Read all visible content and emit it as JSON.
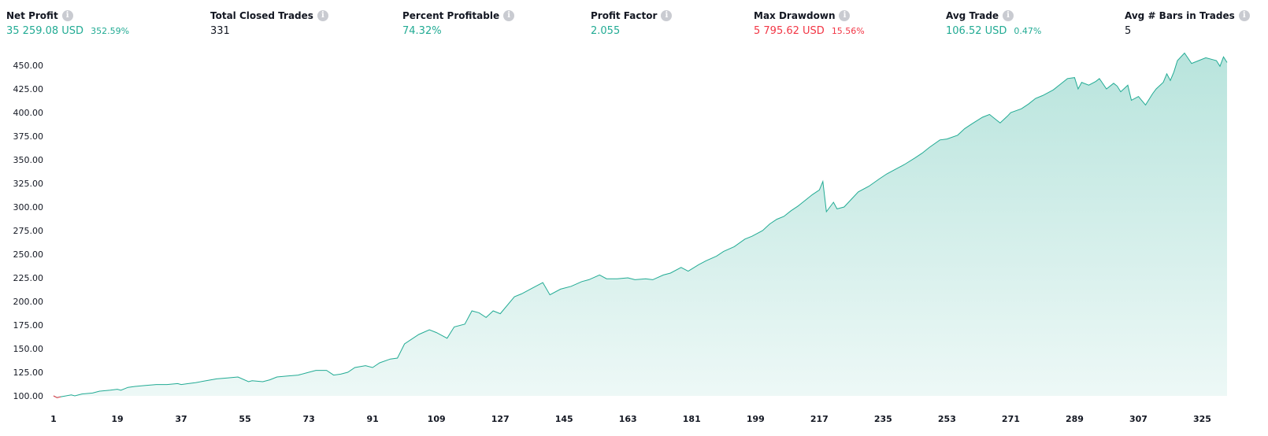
{
  "stats": [
    {
      "label": "Net Profit",
      "value": "35 259.08 USD",
      "sub": "352.59%",
      "value_color": "#22ab94",
      "sub_color": "#22ab94"
    },
    {
      "label": "Total Closed Trades",
      "value": "331",
      "sub": "",
      "value_color": "#131722",
      "sub_color": "#131722"
    },
    {
      "label": "Percent Profitable",
      "value": "74.32%",
      "sub": "",
      "value_color": "#22ab94",
      "sub_color": "#22ab94"
    },
    {
      "label": "Profit Factor",
      "value": "2.055",
      "sub": "",
      "value_color": "#22ab94",
      "sub_color": "#22ab94"
    },
    {
      "label": "Max Drawdown",
      "value": "5 795.62 USD",
      "sub": "15.56%",
      "value_color": "#f23645",
      "sub_color": "#f23645"
    },
    {
      "label": "Avg Trade",
      "value": "106.52 USD",
      "sub": "0.47%",
      "value_color": "#22ab94",
      "sub_color": "#22ab94"
    },
    {
      "label": "Avg # Bars in Trades",
      "value": "5",
      "sub": "",
      "value_color": "#131722",
      "sub_color": "#131722"
    }
  ],
  "info_icon": "info-icon",
  "colors": {
    "line": "#22ab94",
    "fill": "#22ab94",
    "negative": "#f23645"
  },
  "chart_data": {
    "type": "area",
    "title": "",
    "xlabel": "",
    "ylabel": "",
    "x_ticks": [
      "1",
      "19",
      "37",
      "55",
      "73",
      "91",
      "109",
      "127",
      "145",
      "163",
      "181",
      "199",
      "217",
      "235",
      "253",
      "271",
      "289",
      "307",
      "325"
    ],
    "y_ticks": [
      "100.00",
      "125.00",
      "150.00",
      "175.00",
      "200.00",
      "225.00",
      "250.00",
      "275.00",
      "300.00",
      "325.00",
      "350.00",
      "375.00",
      "400.00",
      "425.00",
      "450.00"
    ],
    "ylim": [
      100,
      450
    ],
    "xlim": [
      1,
      332
    ],
    "grid": false,
    "series": [
      {
        "x": [
          1,
          2,
          3,
          6,
          7,
          9,
          12,
          14,
          17,
          19,
          20,
          22,
          24,
          27,
          30,
          33,
          36,
          37,
          39,
          41,
          44,
          47,
          50,
          53,
          56,
          57,
          60,
          62,
          64,
          67,
          70,
          73,
          75,
          78,
          80,
          82,
          84,
          86,
          89,
          91,
          93,
          96,
          98,
          100,
          104,
          107,
          109,
          112,
          114,
          117,
          119,
          121,
          123,
          125,
          127,
          131,
          133,
          136,
          139,
          141,
          144,
          147,
          150,
          152,
          155,
          157,
          160,
          163,
          165,
          168,
          170,
          173,
          175,
          178,
          180,
          183,
          185,
          188,
          190,
          193,
          196,
          198,
          201,
          203,
          205,
          207,
          209,
          211,
          213,
          215,
          217,
          218,
          219,
          221,
          222,
          224,
          226,
          228,
          231,
          234,
          236,
          238,
          241,
          244,
          246,
          248,
          251,
          253,
          256,
          258,
          260,
          263,
          265,
          267,
          268,
          270,
          271,
          274,
          276,
          278,
          280,
          283,
          285,
          287,
          289,
          290,
          291,
          293,
          295,
          296,
          298,
          300,
          301,
          302,
          304,
          305,
          307,
          309,
          311,
          312,
          314,
          315,
          316,
          317,
          318,
          320,
          322,
          324,
          326,
          328,
          329,
          330,
          331,
          332
        ],
        "y": [
          100,
          98,
          99,
          101,
          100,
          102,
          103,
          105,
          106,
          107,
          106,
          109,
          110,
          111,
          112,
          112,
          113,
          112,
          113,
          114,
          116,
          118,
          119,
          120,
          115,
          116,
          115,
          117,
          120,
          121,
          122,
          125,
          127,
          127,
          122,
          123,
          125,
          130,
          132,
          130,
          135,
          139,
          140,
          155,
          165,
          170,
          167,
          161,
          173,
          176,
          190,
          188,
          183,
          190,
          187,
          205,
          208,
          214,
          220,
          207,
          213,
          216,
          221,
          223,
          228,
          224,
          224,
          225,
          223,
          224,
          223,
          228,
          230,
          236,
          232,
          239,
          243,
          248,
          253,
          258,
          266,
          269,
          275,
          282,
          287,
          290,
          296,
          301,
          307,
          313,
          318,
          327,
          295,
          305,
          298,
          300,
          308,
          316,
          322,
          330,
          335,
          339,
          345,
          352,
          357,
          363,
          371,
          372,
          376,
          383,
          388,
          395,
          398,
          392,
          389,
          396,
          400,
          404,
          409,
          415,
          418,
          424,
          430,
          436,
          437,
          425,
          432,
          429,
          433,
          436,
          425,
          431,
          428,
          422,
          429,
          413,
          417,
          408,
          420,
          425,
          432,
          441,
          434,
          443,
          455,
          463,
          452,
          455,
          458,
          456,
          455,
          449,
          459,
          453
        ]
      }
    ]
  }
}
